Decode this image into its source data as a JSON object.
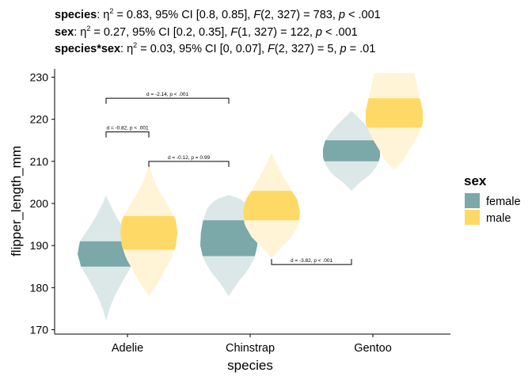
{
  "subtitle_lines": [
    {
      "term": "species",
      "rest_html": ": η<sup style=\"font-size:9px\">2</sup> = 0.83, 95% CI [0.8, 0.85], <i>F</i>(2, 327) = 783, <i>p</i> &lt; .001"
    },
    {
      "term": "sex",
      "rest_html": ": η<sup style=\"font-size:9px\">2</sup> = 0.27, 95% CI [0.2, 0.35], <i>F</i>(1, 327) = 122, <i>p</i> &lt; .001"
    },
    {
      "term": "species*sex",
      "rest_html": ": η<sup style=\"font-size:9px\">2</sup> = 0.03, 95% CI [0, 0.07], <i>F</i>(2, 327) = 5, <i>p</i> = .01"
    }
  ],
  "chart_data": {
    "type": "violin",
    "xlabel": "species",
    "ylabel": "flipper_length_mm",
    "categories": [
      "Adelie",
      "Chinstrap",
      "Gentoo"
    ],
    "ylim": [
      169,
      231
    ],
    "yticks": [
      170,
      180,
      190,
      200,
      210,
      220,
      230
    ],
    "legend": {
      "title": "sex",
      "position": "right"
    },
    "series": [
      {
        "name": "female",
        "color": "#7BA8A8",
        "light": "#DCE8E8",
        "violins": [
          {
            "category": "Adelie",
            "min": 172,
            "max": 202,
            "q1": 185,
            "q3": 191,
            "profile": [
              [
                172,
                0
              ],
              [
                175,
                0.12
              ],
              [
                178,
                0.3
              ],
              [
                182,
                0.62
              ],
              [
                185,
                0.88
              ],
              [
                188,
                1
              ],
              [
                191,
                0.92
              ],
              [
                194,
                0.62
              ],
              [
                197,
                0.35
              ],
              [
                200,
                0.12
              ],
              [
                202,
                0
              ]
            ]
          },
          {
            "category": "Chinstrap",
            "min": 178,
            "max": 202,
            "q1": 187.5,
            "q3": 196,
            "profile": [
              [
                178,
                0
              ],
              [
                181,
                0.3
              ],
              [
                184,
                0.65
              ],
              [
                187,
                0.9
              ],
              [
                190,
                1
              ],
              [
                193,
                0.98
              ],
              [
                196,
                0.9
              ],
              [
                199,
                0.75
              ],
              [
                201,
                0.45
              ],
              [
                202,
                0
              ]
            ]
          },
          {
            "category": "Gentoo",
            "min": 203,
            "max": 222,
            "q1": 210,
            "q3": 215,
            "profile": [
              [
                203,
                0
              ],
              [
                205,
                0.3
              ],
              [
                207,
                0.68
              ],
              [
                209,
                0.9
              ],
              [
                211,
                1
              ],
              [
                213,
                1
              ],
              [
                215,
                0.92
              ],
              [
                217,
                0.72
              ],
              [
                219,
                0.45
              ],
              [
                221,
                0.15
              ],
              [
                222,
                0
              ]
            ]
          }
        ]
      },
      {
        "name": "male",
        "color": "#FFD966",
        "light": "#FFF4D6",
        "violins": [
          {
            "category": "Adelie",
            "min": 178,
            "max": 210,
            "q1": 189,
            "q3": 197,
            "profile": [
              [
                178,
                0
              ],
              [
                181,
                0.3
              ],
              [
                184,
                0.55
              ],
              [
                187,
                0.8
              ],
              [
                190,
                0.95
              ],
              [
                193,
                1
              ],
              [
                196,
                0.95
              ],
              [
                199,
                0.72
              ],
              [
                202,
                0.45
              ],
              [
                205,
                0.2
              ],
              [
                208,
                0.06
              ],
              [
                210,
                0
              ]
            ]
          },
          {
            "category": "Chinstrap",
            "min": 187,
            "max": 212,
            "q1": 196,
            "q3": 203,
            "profile": [
              [
                187,
                0
              ],
              [
                189,
                0.25
              ],
              [
                192,
                0.7
              ],
              [
                195,
                0.95
              ],
              [
                198,
                1
              ],
              [
                201,
                0.9
              ],
              [
                203,
                0.7
              ],
              [
                206,
                0.45
              ],
              [
                209,
                0.2
              ],
              [
                212,
                0
              ]
            ]
          },
          {
            "category": "Gentoo",
            "min": 208,
            "max": 231,
            "q1": 218,
            "q3": 225,
            "profile": [
              [
                208,
                0
              ],
              [
                210,
                0.3
              ],
              [
                213,
                0.55
              ],
              [
                216,
                0.82
              ],
              [
                219,
                1
              ],
              [
                222,
                1
              ],
              [
                225,
                0.9
              ],
              [
                228,
                0.8
              ],
              [
                231,
                0.7
              ]
            ]
          }
        ]
      }
    ],
    "comparisons": [
      {
        "label": "d = -0.82, p < .001",
        "from": [
          "Adelie",
          "female"
        ],
        "to": [
          "Adelie",
          "male"
        ],
        "y": 217
      },
      {
        "label": "d = -2.14, p < .001",
        "from": [
          "Adelie",
          "female"
        ],
        "to": [
          "Chinstrap",
          "female"
        ],
        "y": 225
      },
      {
        "label": "d = -0.12, p = 0.99",
        "from": [
          "Adelie",
          "male"
        ],
        "to": [
          "Chinstrap",
          "female"
        ],
        "y": 210
      },
      {
        "label": "d = -3.82, p < .001",
        "from": [
          "Chinstrap",
          "male"
        ],
        "to": [
          "Gentoo",
          "female"
        ],
        "y": 185.5,
        "drop": "up"
      }
    ]
  }
}
